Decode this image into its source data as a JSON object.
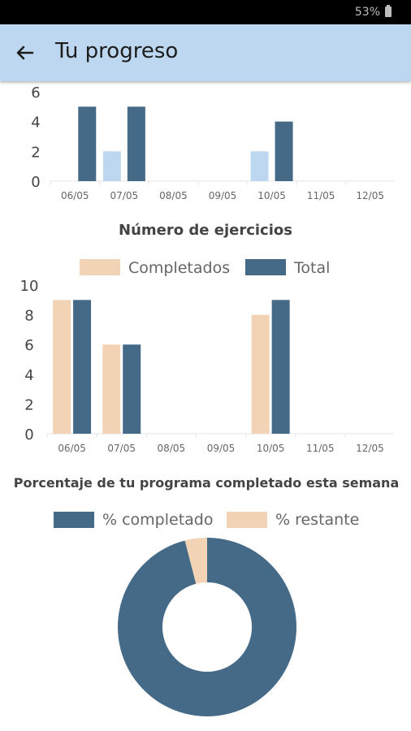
{
  "status_bar": {
    "battery_text": "53%"
  },
  "app_bar": {
    "title": "Tu progreso",
    "back_icon": "arrow-left-icon"
  },
  "colors": {
    "dark": "#446a88",
    "light": "#bcd7ef",
    "peach": "#f3d3b6",
    "grid": "#e6e6e6",
    "axis_text": "#444444",
    "tick_text": "#666666"
  },
  "chart_data": [
    {
      "type": "bar",
      "categories": [
        "06/05",
        "07/05",
        "08/05",
        "09/05",
        "10/05",
        "11/05",
        "12/05"
      ],
      "series": [
        {
          "values": [
            0,
            2,
            0,
            0,
            2,
            0,
            0
          ],
          "color": "#bcd7ef"
        },
        {
          "values": [
            5,
            5,
            0,
            0,
            4,
            0,
            0
          ],
          "color": "#446a88"
        }
      ],
      "yticks": [
        0,
        2,
        4,
        6
      ],
      "ylim": [
        0,
        6
      ]
    },
    {
      "type": "bar",
      "title": "Número de ejercicios",
      "categories": [
        "06/05",
        "07/05",
        "08/05",
        "09/05",
        "10/05",
        "11/05",
        "12/05"
      ],
      "series": [
        {
          "name": "Completados",
          "values": [
            9,
            6,
            0,
            0,
            8,
            0,
            0
          ],
          "color": "#f3d3b6"
        },
        {
          "name": "Total",
          "values": [
            9,
            6,
            0,
            0,
            9,
            0,
            0
          ],
          "color": "#446a88"
        }
      ],
      "yticks": [
        0,
        2,
        4,
        6,
        8,
        10
      ],
      "ylim": [
        0,
        10
      ],
      "legend_position": "top"
    },
    {
      "type": "pie",
      "title": "Porcentaje de tu programa completado esta semana",
      "labels": [
        "% completado",
        "% restante"
      ],
      "values": [
        96,
        4
      ],
      "colors": [
        "#446a88",
        "#f3d3b6"
      ],
      "legend_position": "top"
    }
  ]
}
